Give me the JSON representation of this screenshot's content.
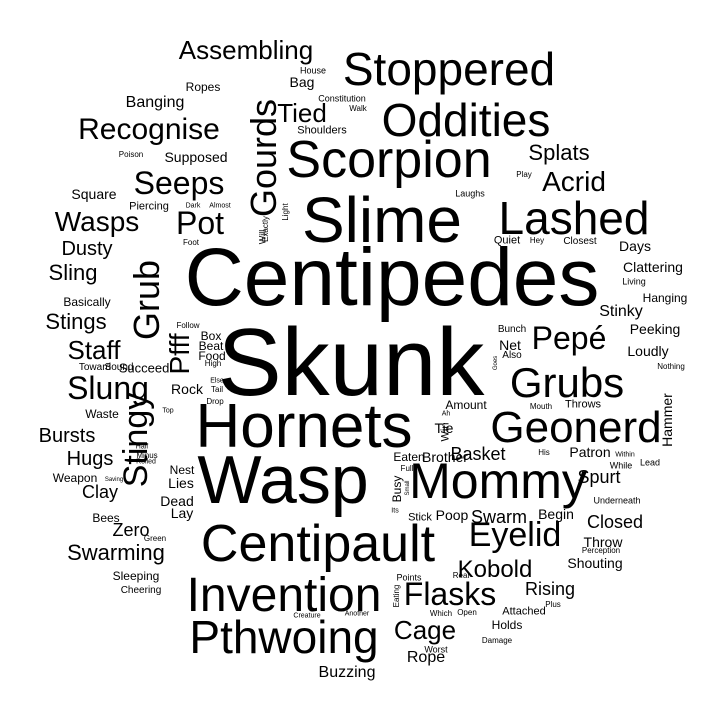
{
  "text_color": "#000000",
  "background": "#ffffff",
  "words": [
    "Skunk",
    "Centipedes",
    "Wasp",
    "Hornets",
    "Slime",
    "Centipault",
    "Scorpion",
    "Mommy",
    "Invention",
    "Pthwoing",
    "Lashed",
    "Stoppered",
    "Oddities",
    "Geonerd",
    "Grubs",
    "Gourds",
    "Grub",
    "Stingy",
    "Eyelid",
    "Recognise",
    "Seeps",
    "Slung",
    "Flasks",
    "Pepé",
    "Wasps",
    "Pot",
    "Assembling",
    "Tied",
    "Acrid",
    "Cage",
    "Staff",
    "Kobold",
    "Swarming",
    "Sling",
    "Dusty",
    "Splats",
    "Stings",
    "Pfff",
    "Bursts",
    "Hugs",
    "Swarm",
    "Basket",
    "Clay",
    "Rising",
    "Closed",
    "Spurt",
    "Zero",
    "Rope",
    "Banging",
    "Buzzing",
    "Stinky",
    "Supposed",
    "Clattering",
    "Hammer",
    "Patron",
    "Peeking",
    "Throw",
    "Shouting",
    "Holds",
    "Square",
    "Net",
    "Bag",
    "Days",
    "Loudly",
    "Basically",
    "Lay",
    "Dead",
    "Lies",
    "Begin",
    "Poop",
    "Brother",
    "Eaten",
    "Rock",
    "Tie",
    "Succeed",
    "Nest",
    "Box",
    "Beat",
    "Food",
    "Ropes",
    "Sleeping",
    "Bees",
    "Waste",
    "Attached",
    "Weapon",
    "Hanging",
    "Amount",
    "Throws",
    "Busy",
    "Win",
    "Stick",
    "Quiet",
    "Closest",
    "Piercing",
    "Cheering",
    "Shoulders",
    "Bunch",
    "Also",
    "Constitution",
    "House",
    "Walk",
    "Light",
    "Will",
    "Exactly",
    "Dark",
    "Almost",
    "Poison",
    "Play",
    "Laughs",
    "Hey",
    "Living",
    "Follow",
    "Foot",
    "Toward",
    "Sound",
    "High",
    "Else",
    "Tail",
    "Drop",
    "Half",
    "Minus",
    "Rolled",
    "Saving",
    "Green",
    "Top",
    "Ah",
    "Mouth",
    "His",
    "Within",
    "While",
    "Lead",
    "Underneath",
    "Perception",
    "Real",
    "Points",
    "Eating",
    "Which",
    "Open",
    "Another",
    "Creature",
    "Plus",
    "Damage",
    "Worst",
    "Full",
    "Small",
    "Its",
    "Goes",
    "Nothing"
  ]
}
